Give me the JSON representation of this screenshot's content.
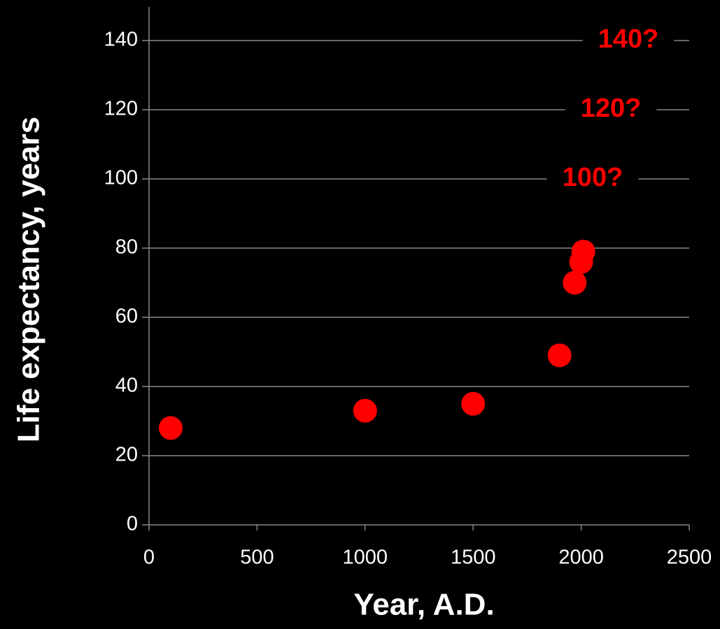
{
  "chart_data": {
    "type": "scatter",
    "xlabel": "Year, A.D.",
    "ylabel": "Life expectancy, years",
    "x": [
      100,
      1000,
      1500,
      1900,
      1970,
      2000,
      2010
    ],
    "series": [
      {
        "color": "#ff0000",
        "values": [
          28,
          33,
          35,
          49,
          70,
          76,
          79
        ]
      }
    ],
    "xlim": [
      0,
      2500
    ],
    "xticks": [
      0,
      500,
      1000,
      1500,
      2000,
      2500
    ],
    "ylim": [
      0,
      140
    ],
    "yticks": [
      0,
      20,
      40,
      60,
      80,
      100,
      120,
      140
    ],
    "grid": true,
    "annotations": [
      "140?",
      "120?",
      "100?"
    ]
  }
}
